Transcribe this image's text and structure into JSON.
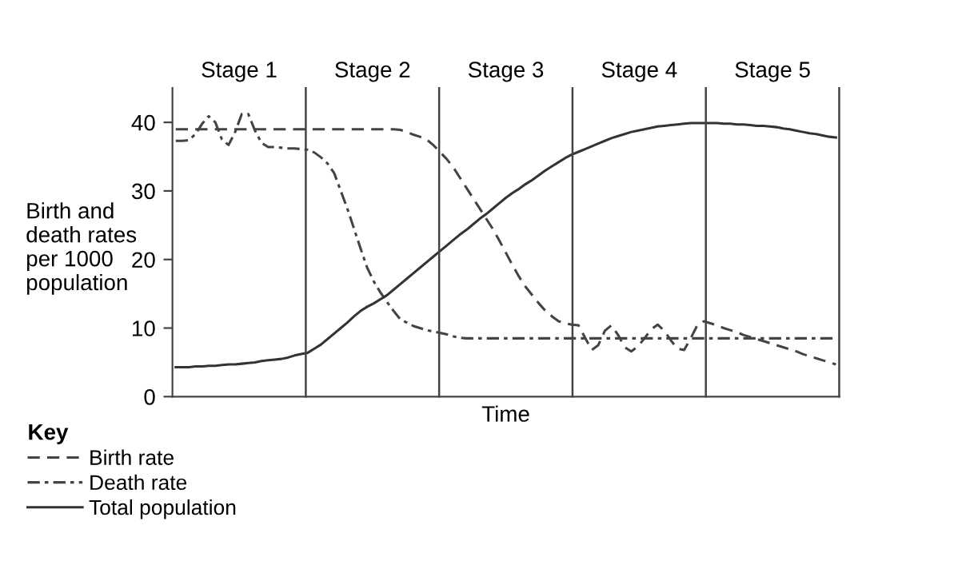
{
  "chart_data": {
    "type": "line",
    "xlabel": "Time",
    "ylabel": "Birth and\ndeath rates\nper 1000\npopulation",
    "legend_title": "Key",
    "legend": "bottom left",
    "tick_labels": "y",
    "grid": false,
    "ylim": [
      0,
      45
    ],
    "yticks": [
      0,
      10,
      20,
      30,
      40
    ],
    "annotations": [
      "Stage 1",
      "Stage 2",
      "Stage 3",
      "Stage 4",
      "Stage 5"
    ],
    "categories": [
      null,
      null,
      null,
      null,
      null,
      null,
      null,
      null,
      null,
      null,
      null,
      null,
      null,
      null,
      null,
      null,
      null,
      null,
      null,
      null,
      null,
      null,
      null,
      null,
      null,
      null,
      null,
      null,
      null,
      null,
      null,
      null,
      null,
      null,
      null,
      null,
      null,
      null,
      null,
      null,
      null,
      null,
      null,
      null,
      null,
      null,
      null,
      null,
      null,
      null,
      null,
      null,
      null,
      null,
      null,
      null,
      null,
      null,
      null,
      null,
      null,
      null,
      null,
      null,
      null,
      null,
      null,
      null,
      null,
      null,
      null,
      null,
      null,
      null,
      null,
      null,
      null,
      null,
      null,
      null,
      null,
      null,
      null,
      null,
      null,
      null,
      null,
      null,
      null,
      null,
      null,
      null,
      null,
      null,
      null,
      null,
      null,
      null,
      null,
      null,
      null
    ],
    "series": [
      {
        "name": "Birth rate",
        "color": "#444444",
        "line_style": "dashed",
        "values": [
          39,
          39,
          39,
          39,
          39,
          39,
          39,
          39,
          39,
          39,
          39,
          39,
          39,
          39,
          39,
          39,
          39,
          39,
          39,
          39,
          39,
          39,
          39,
          39,
          39,
          39,
          39,
          39,
          39,
          39,
          39,
          39,
          39,
          39,
          38.9,
          38.6,
          38.2,
          37.9,
          37.5,
          36.7,
          35.7,
          34.7,
          33.5,
          32,
          30.5,
          29,
          27.5,
          26,
          24.5,
          22.8,
          21,
          19.2,
          17.5,
          16,
          14.8,
          13.6,
          12.5,
          11.7,
          11,
          10.7,
          10.5,
          10.4,
          8.6,
          6.8,
          7.5,
          9.6,
          10.4,
          9,
          7.2,
          6.6,
          7.3,
          8.5,
          9.8,
          10.5,
          9.6,
          8.2,
          7,
          6.8,
          8.5,
          10.4,
          11,
          10.7,
          10.4,
          10,
          9.7,
          9.4,
          9,
          8.7,
          8.4,
          8.1,
          7.8,
          7.5,
          7.2,
          6.9,
          6.6,
          6.2,
          5.9,
          5.6,
          5.3,
          5,
          4.7
        ]
      },
      {
        "name": "Death rate",
        "color": "#444444",
        "line_style": "dashdot",
        "values": [
          37.3,
          37.3,
          37.4,
          38.3,
          39.8,
          40.9,
          40,
          37.5,
          36.7,
          38.6,
          41.2,
          41.2,
          38.8,
          37,
          36.4,
          36.4,
          36.3,
          36.2,
          36.2,
          36.1,
          36,
          35.6,
          34.9,
          34,
          32.6,
          30,
          27.4,
          24.5,
          21.6,
          18.8,
          16.8,
          15.2,
          13.8,
          12.5,
          11.3,
          10.8,
          10.3,
          10,
          9.7,
          9.5,
          9.3,
          9.1,
          8.8,
          8.6,
          8.5,
          8.5,
          8.5,
          8.5,
          8.5,
          8.5,
          8.5,
          8.5,
          8.5,
          8.5,
          8.5,
          8.5,
          8.5,
          8.5,
          8.5,
          8.5,
          8.5,
          8.5,
          8.5,
          8.5,
          8.5,
          8.5,
          8.5,
          8.5,
          8.5,
          8.5,
          8.5,
          8.5,
          8.5,
          8.5,
          8.5,
          8.5,
          8.5,
          8.5,
          8.5,
          8.5,
          8.5,
          8.5,
          8.5,
          8.5,
          8.5,
          8.5,
          8.5,
          8.5,
          8.5,
          8.5,
          8.5,
          8.5,
          8.5,
          8.5,
          8.5,
          8.5,
          8.5,
          8.5,
          8.5,
          8.5,
          8.5
        ]
      },
      {
        "name": "Total population",
        "color": "#333333",
        "line_style": "solid",
        "values": [
          4.3,
          4.3,
          4.3,
          4.4,
          4.4,
          4.5,
          4.5,
          4.6,
          4.7,
          4.7,
          4.8,
          4.9,
          5,
          5.2,
          5.3,
          5.4,
          5.5,
          5.7,
          6,
          6.2,
          6.4,
          7,
          7.6,
          8.4,
          9.2,
          10,
          10.8,
          11.7,
          12.5,
          13.1,
          13.6,
          14.2,
          14.8,
          15.6,
          16.4,
          17.2,
          18,
          18.8,
          19.6,
          20.4,
          21.2,
          22,
          22.8,
          23.6,
          24.3,
          25.1,
          25.9,
          26.6,
          27.4,
          28.2,
          29,
          29.7,
          30.3,
          31,
          31.6,
          32.3,
          33,
          33.6,
          34.2,
          34.8,
          35.3,
          35.7,
          36.1,
          36.5,
          36.9,
          37.3,
          37.7,
          38,
          38.3,
          38.6,
          38.8,
          39,
          39.2,
          39.4,
          39.5,
          39.6,
          39.7,
          39.8,
          39.9,
          39.9,
          39.9,
          39.9,
          39.9,
          39.8,
          39.8,
          39.7,
          39.7,
          39.6,
          39.5,
          39.5,
          39.4,
          39.3,
          39.1,
          39,
          38.8,
          38.6,
          38.4,
          38.3,
          38.1,
          37.9,
          37.8
        ]
      }
    ]
  }
}
